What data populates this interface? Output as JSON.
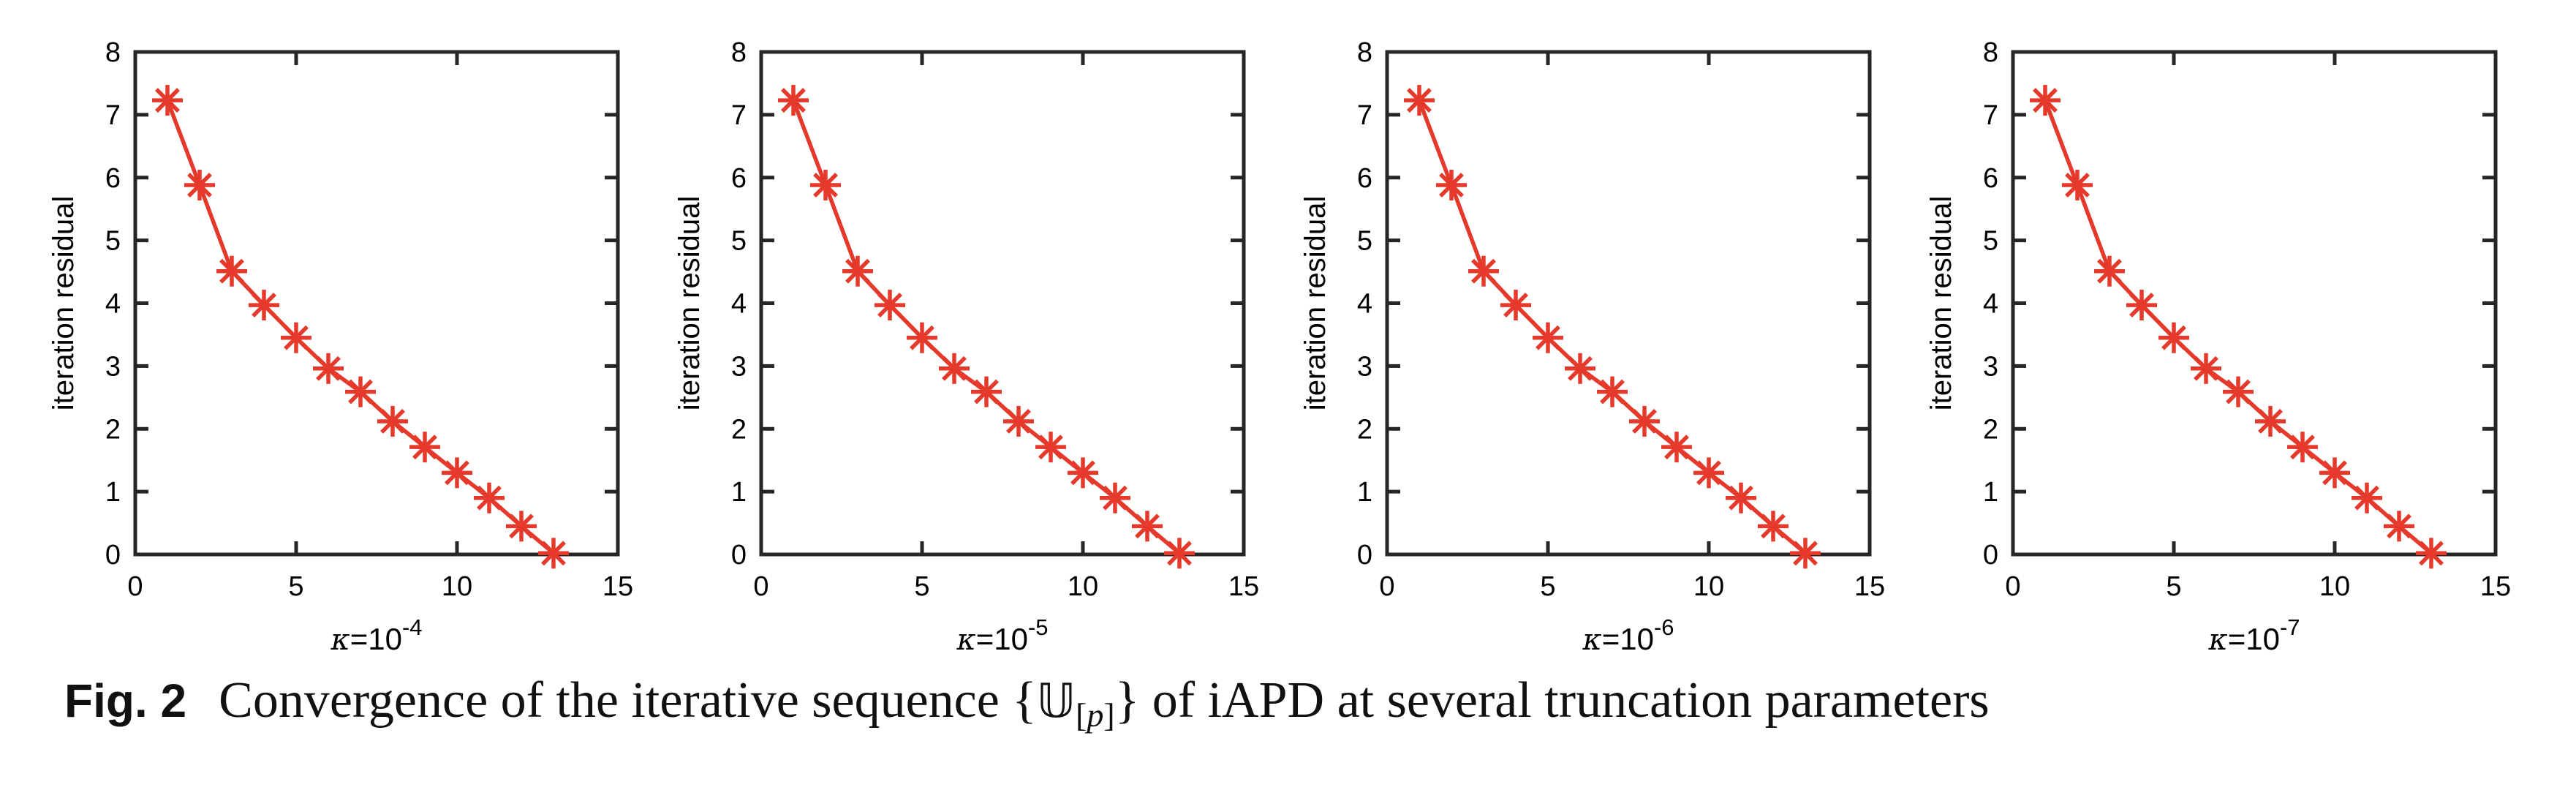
{
  "colors": {
    "line": "#e53a2b",
    "axis": "#262626",
    "text": "#000000",
    "background": "#ffffff"
  },
  "caption": {
    "label": "Fig. 2",
    "body_start": "Convergence of the iterative sequence {",
    "math_symbol": "𝕌",
    "sub_open": "[",
    "sub_p": "p",
    "sub_close": "]",
    "body_end": "} of iAPD at several truncation parameters"
  },
  "chart_data": [
    {
      "type": "line",
      "marker": "asterisk",
      "title": "",
      "xlabel": {
        "kappa": "κ",
        "equals": "=10",
        "exponent": "-4"
      },
      "ylabel": "iteration residual",
      "xlim": [
        0,
        15
      ],
      "ylim": [
        0,
        8
      ],
      "xticks": [
        0,
        5,
        10,
        15
      ],
      "yticks": [
        0,
        1,
        2,
        3,
        4,
        5,
        6,
        7,
        8
      ],
      "grid": false,
      "legend": null,
      "x": [
        1,
        2,
        3,
        4,
        5,
        6,
        7,
        8,
        9,
        10,
        11,
        12,
        13
      ],
      "y": [
        7.23,
        5.88,
        4.51,
        3.97,
        3.45,
        2.96,
        2.59,
        2.12,
        1.71,
        1.3,
        0.9,
        0.45,
        0.02
      ]
    },
    {
      "type": "line",
      "marker": "asterisk",
      "title": "",
      "xlabel": {
        "kappa": "κ",
        "equals": "=10",
        "exponent": "-5"
      },
      "ylabel": "iteration residual",
      "xlim": [
        0,
        15
      ],
      "ylim": [
        0,
        8
      ],
      "xticks": [
        0,
        5,
        10,
        15
      ],
      "yticks": [
        0,
        1,
        2,
        3,
        4,
        5,
        6,
        7,
        8
      ],
      "grid": false,
      "legend": null,
      "x": [
        1,
        2,
        3,
        4,
        5,
        6,
        7,
        8,
        9,
        10,
        11,
        12,
        13
      ],
      "y": [
        7.23,
        5.88,
        4.51,
        3.97,
        3.45,
        2.96,
        2.59,
        2.12,
        1.71,
        1.3,
        0.9,
        0.45,
        0.02
      ]
    },
    {
      "type": "line",
      "marker": "asterisk",
      "title": "",
      "xlabel": {
        "kappa": "κ",
        "equals": "=10",
        "exponent": "-6"
      },
      "ylabel": "iteration residual",
      "xlim": [
        0,
        15
      ],
      "ylim": [
        0,
        8
      ],
      "xticks": [
        0,
        5,
        10,
        15
      ],
      "yticks": [
        0,
        1,
        2,
        3,
        4,
        5,
        6,
        7,
        8
      ],
      "grid": false,
      "legend": null,
      "x": [
        1,
        2,
        3,
        4,
        5,
        6,
        7,
        8,
        9,
        10,
        11,
        12,
        13
      ],
      "y": [
        7.23,
        5.88,
        4.51,
        3.97,
        3.45,
        2.96,
        2.59,
        2.12,
        1.71,
        1.3,
        0.9,
        0.45,
        0.02
      ]
    },
    {
      "type": "line",
      "marker": "asterisk",
      "title": "",
      "xlabel": {
        "kappa": "κ",
        "equals": "=10",
        "exponent": "-7"
      },
      "ylabel": "iteration residual",
      "xlim": [
        0,
        15
      ],
      "ylim": [
        0,
        8
      ],
      "xticks": [
        0,
        5,
        10,
        15
      ],
      "yticks": [
        0,
        1,
        2,
        3,
        4,
        5,
        6,
        7,
        8
      ],
      "grid": false,
      "legend": null,
      "x": [
        1,
        2,
        3,
        4,
        5,
        6,
        7,
        8,
        9,
        10,
        11,
        12,
        13
      ],
      "y": [
        7.23,
        5.88,
        4.51,
        3.97,
        3.45,
        2.96,
        2.59,
        2.12,
        1.71,
        1.3,
        0.9,
        0.45,
        0.02
      ]
    }
  ]
}
